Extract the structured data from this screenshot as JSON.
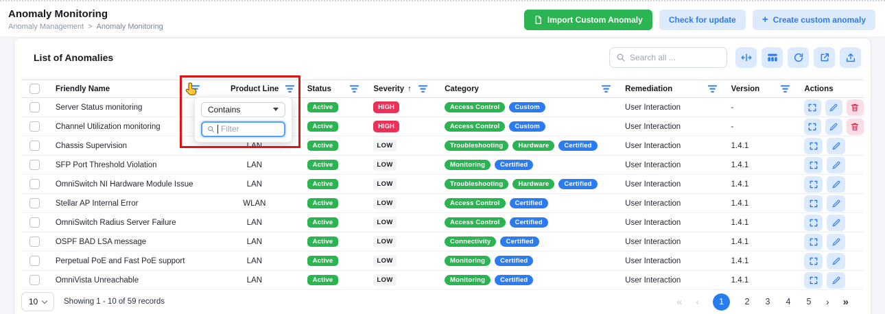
{
  "header": {
    "title": "Anomaly Monitoring",
    "breadcrumb": {
      "parent": "Anomaly Management",
      "separator": ">",
      "current": "Anomaly Monitoring"
    },
    "buttons": {
      "import": "Import Custom Anomaly",
      "check_update": "Check for update",
      "create": "Create custom anomaly",
      "create_plus": "+"
    }
  },
  "panel": {
    "title": "List of Anomalies",
    "search": {
      "placeholder": "Search all ..."
    },
    "toolbar_icons": [
      "column-resize-icon",
      "columns-icon",
      "refresh-icon",
      "export-icon",
      "upload-icon"
    ]
  },
  "filter_popup": {
    "operator": "Contains",
    "filter_placeholder": "Filter"
  },
  "table": {
    "headers": {
      "friendly_name": "Friendly Name",
      "product_line": "Product Line",
      "status": "Status",
      "severity": "Severity",
      "severity_sort": "↑",
      "category": "Category",
      "remediation": "Remediation",
      "version": "Version",
      "actions": "Actions"
    },
    "rows": [
      {
        "name": "Server Status monitoring",
        "product_line": "",
        "status": "Active",
        "severity": "HIGH",
        "categories": [
          {
            "label": "Access Control",
            "color": "green"
          },
          {
            "label": "Custom",
            "color": "blue"
          }
        ],
        "remediation": "User Interaction",
        "version": "-",
        "actions": [
          "expand",
          "edit",
          "delete"
        ]
      },
      {
        "name": "Channel Utilization monitoring",
        "product_line": "",
        "status": "Active",
        "severity": "HIGH",
        "categories": [
          {
            "label": "Access Control",
            "color": "green"
          },
          {
            "label": "Custom",
            "color": "blue"
          }
        ],
        "remediation": "User Interaction",
        "version": "-",
        "actions": [
          "expand",
          "edit",
          "delete"
        ]
      },
      {
        "name": "Chassis Supervision",
        "product_line": "LAN",
        "status": "Active",
        "severity": "LOW",
        "categories": [
          {
            "label": "Troubleshooting",
            "color": "green"
          },
          {
            "label": "Hardware",
            "color": "green"
          },
          {
            "label": "Certified",
            "color": "blue"
          }
        ],
        "remediation": "User Interaction",
        "version": "1.4.1",
        "actions": [
          "expand",
          "edit"
        ]
      },
      {
        "name": "SFP Port Threshold Violation",
        "product_line": "LAN",
        "status": "Active",
        "severity": "LOW",
        "categories": [
          {
            "label": "Monitoring",
            "color": "green"
          },
          {
            "label": "Certified",
            "color": "blue"
          }
        ],
        "remediation": "User Interaction",
        "version": "1.4.1",
        "actions": [
          "expand",
          "edit"
        ]
      },
      {
        "name": "OmniSwitch NI Hardware Module Issue",
        "product_line": "LAN",
        "status": "Active",
        "severity": "LOW",
        "categories": [
          {
            "label": "Troubleshooting",
            "color": "green"
          },
          {
            "label": "Hardware",
            "color": "green"
          },
          {
            "label": "Certified",
            "color": "blue"
          }
        ],
        "remediation": "User Interaction",
        "version": "1.4.1",
        "actions": [
          "expand",
          "edit"
        ]
      },
      {
        "name": "Stellar AP Internal Error",
        "product_line": "WLAN",
        "status": "Active",
        "severity": "LOW",
        "categories": [
          {
            "label": "Access Control",
            "color": "green"
          },
          {
            "label": "Certified",
            "color": "blue"
          }
        ],
        "remediation": "User Interaction",
        "version": "1.4.1",
        "actions": [
          "expand",
          "edit"
        ]
      },
      {
        "name": "OmniSwitch Radius Server Failure",
        "product_line": "LAN",
        "status": "Active",
        "severity": "LOW",
        "categories": [
          {
            "label": "Access Control",
            "color": "green"
          },
          {
            "label": "Certified",
            "color": "blue"
          }
        ],
        "remediation": "User Interaction",
        "version": "1.4.1",
        "actions": [
          "expand",
          "edit"
        ]
      },
      {
        "name": "OSPF BAD LSA message",
        "product_line": "LAN",
        "status": "Active",
        "severity": "LOW",
        "categories": [
          {
            "label": "Connectivity",
            "color": "green"
          },
          {
            "label": "Certified",
            "color": "blue"
          }
        ],
        "remediation": "User Interaction",
        "version": "1.4.1",
        "actions": [
          "expand",
          "edit"
        ]
      },
      {
        "name": "Perpetual PoE and Fast PoE support",
        "product_line": "LAN",
        "status": "Active",
        "severity": "LOW",
        "categories": [
          {
            "label": "Monitoring",
            "color": "green"
          },
          {
            "label": "Certified",
            "color": "blue"
          }
        ],
        "remediation": "User Interaction",
        "version": "1.4.1",
        "actions": [
          "expand",
          "edit"
        ]
      },
      {
        "name": "OmniVista Unreachable",
        "product_line": "LAN",
        "status": "Active",
        "severity": "LOW",
        "categories": [
          {
            "label": "Monitoring",
            "color": "green"
          },
          {
            "label": "Certified",
            "color": "blue"
          }
        ],
        "remediation": "User Interaction",
        "version": "1.4.1",
        "actions": [
          "expand",
          "edit"
        ]
      }
    ]
  },
  "footer": {
    "page_size": "10",
    "summary": "Showing 1 - 10 of 59 records",
    "pagination": {
      "first": "«",
      "prev": "‹",
      "pages": [
        "1",
        "2",
        "3",
        "4",
        "5"
      ],
      "active": "1",
      "next": "›",
      "last": "»"
    }
  },
  "colors": {
    "green": "#2bb452",
    "blue": "#2b7cf0",
    "severity_high": "#ea3158",
    "annotation_red": "#dd1414",
    "light_blue_bg": "#dbeafe"
  }
}
